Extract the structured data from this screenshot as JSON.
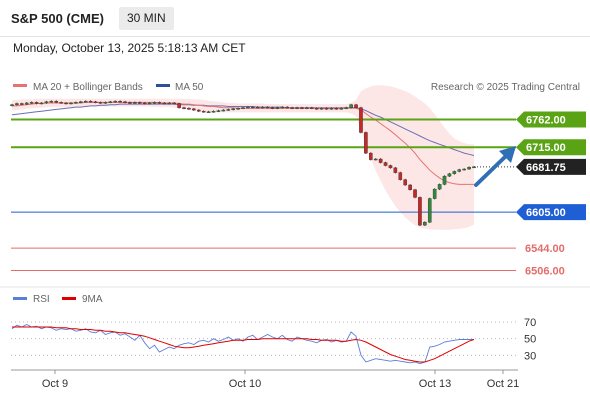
{
  "header": {
    "title": "S&P 500 (CME)",
    "interval": "30 MIN",
    "datetime": "Monday, October 13, 2025 5:18:13 AM CET"
  },
  "legend": {
    "ma20_label": "MA 20 + Bollinger Bands",
    "ma50_label": "MA 50",
    "credit": "Research © 2025 Trading Central",
    "rsi_label": "RSI",
    "rsi_ma_label": "9MA"
  },
  "colors": {
    "up_candle": "#2e8b3a",
    "down_candle": "#c62828",
    "bollinger_fill": "#fde2e2",
    "ma20": "#e57373",
    "ma50": "#6a6fb8",
    "resistance": "#5aa315",
    "pivot": "#1f5fd6",
    "support": "#e36c6c",
    "arrow": "#2f6fb5",
    "rsi": "#5b7fd6",
    "rsi_ma": "#e00000"
  },
  "chart_data": [
    {
      "type": "candlestick",
      "x_tick_labels": [
        "Oct 9",
        "Oct 10",
        "Oct 13",
        "Oct 21"
      ],
      "ylim": [
        6490,
        6795
      ],
      "last_price": 6681.75,
      "levels": [
        {
          "label": "6762.00",
          "value": 6762.0,
          "kind": "resistance"
        },
        {
          "label": "6715.00",
          "value": 6715.0,
          "kind": "resistance"
        },
        {
          "label": "6605.00",
          "value": 6605.0,
          "kind": "pivot"
        },
        {
          "label": "6544.00",
          "value": 6544.0,
          "kind": "support"
        },
        {
          "label": "6506.00",
          "value": 6506.0,
          "kind": "support"
        }
      ],
      "last_price_label": "6681.75",
      "close": [
        6787,
        6789,
        6788,
        6790,
        6791,
        6789,
        6790,
        6792,
        6793,
        6791,
        6790,
        6789,
        6790,
        6791,
        6792,
        6793,
        6792,
        6791,
        6790,
        6791,
        6792,
        6793,
        6792,
        6791,
        6790,
        6791,
        6790,
        6789,
        6790,
        6791,
        6790,
        6789,
        6790,
        6789,
        6782,
        6781,
        6780,
        6778,
        6776,
        6775,
        6775,
        6776,
        6777,
        6778,
        6779,
        6780,
        6781,
        6782,
        6783,
        6783,
        6782,
        6783,
        6782,
        6781,
        6782,
        6783,
        6782,
        6781,
        6782,
        6781,
        6782,
        6781,
        6780,
        6781,
        6780,
        6781,
        6780,
        6781,
        6782,
        6787,
        6782,
        6740,
        6705,
        6694,
        6695,
        6689,
        6684,
        6680,
        6672,
        6660,
        6651,
        6643,
        6630,
        6583,
        6588,
        6628,
        6644,
        6652,
        6666,
        6670,
        6674,
        6677,
        6678,
        6681,
        6681.75
      ],
      "ma20": [
        6785,
        6785,
        6786,
        6787,
        6788,
        6789,
        6789,
        6790,
        6790,
        6790,
        6790,
        6790,
        6790,
        6790,
        6790,
        6791,
        6791,
        6791,
        6791,
        6791,
        6791,
        6791,
        6791,
        6791,
        6791,
        6791,
        6791,
        6791,
        6791,
        6791,
        6790,
        6790,
        6790,
        6790,
        6789,
        6788,
        6788,
        6787,
        6786,
        6785,
        6784,
        6784,
        6783,
        6782,
        6782,
        6782,
        6781,
        6781,
        6781,
        6781,
        6781,
        6781,
        6781,
        6781,
        6781,
        6781,
        6781,
        6781,
        6781,
        6781,
        6781,
        6781,
        6781,
        6781,
        6781,
        6781,
        6781,
        6781,
        6781,
        6781,
        6781,
        6778,
        6772,
        6766,
        6761,
        6755,
        6749,
        6743,
        6736,
        6729,
        6722,
        6714,
        6705,
        6694,
        6685,
        6676,
        6669,
        6663,
        6658,
        6655,
        6653,
        6652,
        6652,
        6652,
        6652
      ],
      "ma50": [
        6770,
        6771,
        6772,
        6773,
        6774,
        6775,
        6776,
        6777,
        6778,
        6779,
        6780,
        6781,
        6782,
        6783,
        6783,
        6784,
        6785,
        6785,
        6786,
        6786,
        6787,
        6787,
        6788,
        6788,
        6788,
        6788,
        6788,
        6788,
        6788,
        6788,
        6788,
        6788,
        6788,
        6788,
        6787,
        6787,
        6787,
        6786,
        6786,
        6786,
        6785,
        6785,
        6785,
        6785,
        6784,
        6784,
        6784,
        6784,
        6784,
        6784,
        6783,
        6783,
        6783,
        6783,
        6783,
        6783,
        6782,
        6782,
        6782,
        6782,
        6782,
        6782,
        6782,
        6782,
        6782,
        6782,
        6782,
        6782,
        6782,
        6782,
        6782,
        6780,
        6777,
        6773,
        6769,
        6766,
        6762,
        6758,
        6754,
        6750,
        6746,
        6742,
        6738,
        6734,
        6730,
        6726,
        6723,
        6720,
        6717,
        6714,
        6711,
        6708,
        6705,
        6703,
        6701
      ],
      "bollinger_upper": [
        6795,
        6795,
        6796,
        6796,
        6796,
        6797,
        6797,
        6797,
        6797,
        6797,
        6797,
        6797,
        6797,
        6797,
        6797,
        6797,
        6797,
        6797,
        6797,
        6797,
        6797,
        6797,
        6797,
        6797,
        6797,
        6797,
        6797,
        6797,
        6797,
        6797,
        6797,
        6797,
        6797,
        6797,
        6797,
        6797,
        6797,
        6796,
        6796,
        6795,
        6794,
        6793,
        6792,
        6791,
        6790,
        6790,
        6789,
        6789,
        6789,
        6789,
        6789,
        6789,
        6788,
        6788,
        6788,
        6788,
        6788,
        6788,
        6788,
        6788,
        6788,
        6788,
        6788,
        6788,
        6788,
        6788,
        6788,
        6788,
        6788,
        6790,
        6795,
        6810,
        6815,
        6818,
        6820,
        6820,
        6819,
        6818,
        6816,
        6813,
        6810,
        6806,
        6801,
        6795,
        6789,
        6781,
        6771,
        6760,
        6748,
        6738,
        6730,
        6725,
        6722,
        6720,
        6720
      ],
      "bollinger_lower": [
        6778,
        6778,
        6779,
        6780,
        6781,
        6782,
        6782,
        6783,
        6783,
        6783,
        6783,
        6783,
        6783,
        6783,
        6783,
        6784,
        6784,
        6784,
        6784,
        6784,
        6784,
        6784,
        6784,
        6784,
        6784,
        6784,
        6784,
        6784,
        6784,
        6783,
        6783,
        6783,
        6783,
        6782,
        6781,
        6779,
        6778,
        6777,
        6776,
        6775,
        6774,
        6774,
        6774,
        6774,
        6774,
        6774,
        6774,
        6774,
        6774,
        6774,
        6774,
        6774,
        6774,
        6774,
        6774,
        6774,
        6774,
        6774,
        6774,
        6774,
        6774,
        6774,
        6774,
        6774,
        6774,
        6774,
        6774,
        6774,
        6774,
        6772,
        6768,
        6745,
        6715,
        6695,
        6675,
        6658,
        6642,
        6628,
        6615,
        6605,
        6596,
        6589,
        6583,
        6579,
        6577,
        6576,
        6575,
        6575,
        6575,
        6575,
        6576,
        6577,
        6578,
        6580,
        6584
      ]
    },
    {
      "type": "line",
      "title": "",
      "y_tick_labels": [
        "70",
        "50",
        "30"
      ],
      "y_ticks": [
        70,
        50,
        30
      ],
      "ylim": [
        10,
        82
      ],
      "series": [
        {
          "name": "RSI",
          "values": [
            62,
            66,
            64,
            67,
            64,
            65,
            62,
            64,
            63,
            60,
            62,
            61,
            62,
            59,
            60,
            62,
            58,
            57,
            60,
            55,
            57,
            58,
            54,
            56,
            52,
            48,
            54,
            45,
            38,
            42,
            34,
            37,
            40,
            38,
            42,
            44,
            45,
            43,
            47,
            48,
            46,
            50,
            47,
            49,
            52,
            48,
            50,
            47,
            52,
            54,
            49,
            52,
            55,
            52,
            50,
            54,
            49,
            47,
            52,
            50,
            48,
            47,
            45,
            48,
            49,
            46,
            48,
            46,
            47,
            58,
            53,
            30,
            22,
            24,
            26,
            25,
            24,
            23,
            24,
            23,
            22,
            21,
            22,
            20,
            22,
            40,
            41,
            43,
            46,
            47,
            48,
            49,
            49,
            49,
            49
          ]
        },
        {
          "name": "9MA",
          "values": [
            64,
            64,
            64,
            64,
            64,
            64,
            64,
            64,
            64,
            63,
            63,
            63,
            62,
            62,
            61,
            61,
            61,
            60,
            60,
            59,
            59,
            58,
            57,
            57,
            56,
            55,
            54,
            53,
            51,
            49,
            47,
            45,
            43,
            41,
            40,
            39,
            39,
            40,
            41,
            42,
            43,
            44,
            45,
            46,
            47,
            48,
            48,
            48,
            49,
            49,
            49,
            50,
            50,
            50,
            50,
            50,
            50,
            50,
            50,
            50,
            50,
            49,
            49,
            48,
            48,
            48,
            48,
            47,
            47,
            48,
            49,
            48,
            46,
            43,
            40,
            37,
            34,
            31,
            29,
            27,
            25,
            24,
            23,
            22,
            22,
            24,
            26,
            29,
            32,
            35,
            38,
            41,
            44,
            47,
            49
          ]
        }
      ]
    }
  ]
}
